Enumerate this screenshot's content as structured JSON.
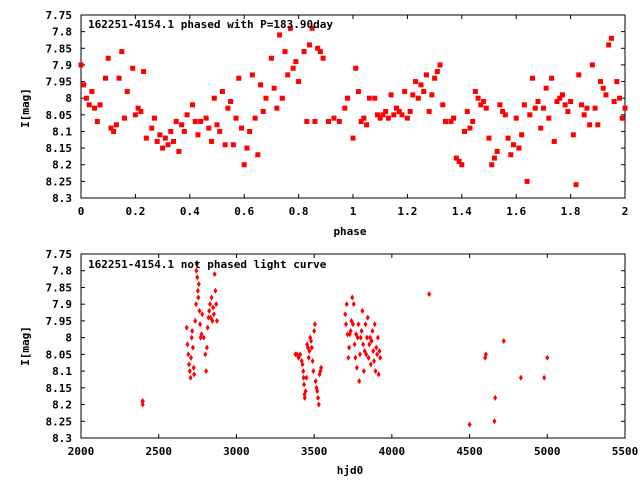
{
  "chart_data": [
    {
      "type": "scatter",
      "title": "162251-4154.1 phased with P=183.90day",
      "xlabel": "phase",
      "ylabel": "I[mag]",
      "xlim": [
        0,
        2
      ],
      "ylim": [
        8.3,
        7.75
      ],
      "y_inverted": true,
      "x_ticks": [
        "0",
        "0.2",
        "0.4",
        "0.6",
        "0.8",
        "1",
        "1.2",
        "1.4",
        "1.6",
        "1.8",
        "2"
      ],
      "y_ticks": [
        "7.75",
        "7.8",
        "7.85",
        "7.9",
        "7.95",
        "8",
        "8.05",
        "8.1",
        "8.15",
        "8.2",
        "8.25",
        "8.3"
      ],
      "marker_color": "#ff0000",
      "marker": "square",
      "points": [
        [
          0.0,
          7.9
        ],
        [
          0.01,
          7.96
        ],
        [
          0.02,
          8.0
        ],
        [
          0.03,
          8.02
        ],
        [
          0.04,
          7.98
        ],
        [
          0.05,
          8.03
        ],
        [
          0.06,
          8.07
        ],
        [
          0.07,
          8.02
        ],
        [
          0.09,
          7.94
        ],
        [
          0.1,
          7.88
        ],
        [
          0.11,
          8.09
        ],
        [
          0.12,
          8.1
        ],
        [
          0.13,
          8.08
        ],
        [
          0.14,
          7.94
        ],
        [
          0.15,
          7.86
        ],
        [
          0.16,
          8.06
        ],
        [
          0.17,
          7.98
        ],
        [
          0.19,
          7.91
        ],
        [
          0.2,
          8.05
        ],
        [
          0.21,
          8.03
        ],
        [
          0.22,
          8.04
        ],
        [
          0.23,
          7.92
        ],
        [
          0.24,
          8.12
        ],
        [
          0.26,
          8.09
        ],
        [
          0.27,
          8.06
        ],
        [
          0.28,
          8.13
        ],
        [
          0.29,
          8.11
        ],
        [
          0.3,
          8.15
        ],
        [
          0.31,
          8.12
        ],
        [
          0.32,
          8.14
        ],
        [
          0.33,
          8.1
        ],
        [
          0.34,
          8.13
        ],
        [
          0.35,
          8.07
        ],
        [
          0.36,
          8.16
        ],
        [
          0.37,
          8.08
        ],
        [
          0.38,
          8.1
        ],
        [
          0.39,
          8.05
        ],
        [
          0.41,
          8.02
        ],
        [
          0.42,
          8.07
        ],
        [
          0.43,
          8.11
        ],
        [
          0.44,
          8.07
        ],
        [
          0.46,
          8.06
        ],
        [
          0.47,
          8.09
        ],
        [
          0.48,
          8.13
        ],
        [
          0.49,
          8.0
        ],
        [
          0.5,
          8.08
        ],
        [
          0.51,
          8.1
        ],
        [
          0.52,
          7.98
        ],
        [
          0.53,
          8.14
        ],
        [
          0.54,
          8.03
        ],
        [
          0.55,
          8.01
        ],
        [
          0.56,
          8.14
        ],
        [
          0.57,
          8.06
        ],
        [
          0.58,
          7.94
        ],
        [
          0.59,
          8.09
        ],
        [
          0.6,
          8.2
        ],
        [
          0.61,
          8.15
        ],
        [
          0.62,
          8.1
        ],
        [
          0.63,
          7.93
        ],
        [
          0.64,
          8.06
        ],
        [
          0.65,
          8.17
        ],
        [
          0.66,
          7.96
        ],
        [
          0.67,
          8.04
        ],
        [
          0.68,
          8.0
        ],
        [
          0.7,
          7.88
        ],
        [
          0.71,
          7.97
        ],
        [
          0.72,
          8.03
        ],
        [
          0.73,
          7.81
        ],
        [
          0.74,
          8.0
        ],
        [
          0.75,
          7.86
        ],
        [
          0.76,
          7.93
        ],
        [
          0.77,
          7.79
        ],
        [
          0.78,
          7.91
        ],
        [
          0.79,
          7.89
        ],
        [
          0.8,
          7.95
        ],
        [
          0.82,
          7.86
        ],
        [
          0.83,
          8.07
        ],
        [
          0.84,
          7.84
        ],
        [
          0.85,
          7.79
        ],
        [
          0.86,
          8.07
        ],
        [
          0.87,
          7.85
        ],
        [
          0.88,
          7.86
        ],
        [
          0.89,
          7.88
        ],
        [
          0.91,
          8.07
        ],
        [
          0.93,
          8.06
        ],
        [
          0.95,
          8.07
        ],
        [
          0.97,
          8.03
        ],
        [
          0.98,
          8.0
        ],
        [
          1.0,
          8.12
        ],
        [
          1.01,
          7.91
        ],
        [
          1.02,
          7.98
        ],
        [
          1.03,
          8.07
        ],
        [
          1.04,
          8.06
        ],
        [
          1.05,
          8.08
        ],
        [
          1.06,
          8.0
        ],
        [
          1.08,
          8.0
        ],
        [
          1.09,
          8.05
        ],
        [
          1.1,
          8.06
        ],
        [
          1.11,
          8.05
        ],
        [
          1.12,
          8.04
        ],
        [
          1.13,
          8.06
        ],
        [
          1.14,
          7.99
        ],
        [
          1.15,
          8.05
        ],
        [
          1.16,
          8.03
        ],
        [
          1.17,
          8.04
        ],
        [
          1.18,
          8.05
        ],
        [
          1.19,
          7.98
        ],
        [
          1.2,
          8.06
        ],
        [
          1.21,
          8.04
        ],
        [
          1.22,
          7.99
        ],
        [
          1.23,
          7.95
        ],
        [
          1.24,
          8.0
        ],
        [
          1.25,
          7.96
        ],
        [
          1.26,
          7.98
        ],
        [
          1.27,
          7.93
        ],
        [
          1.28,
          8.04
        ],
        [
          1.29,
          7.99
        ],
        [
          1.3,
          7.94
        ],
        [
          1.31,
          7.92
        ],
        [
          1.32,
          7.9
        ],
        [
          1.33,
          8.02
        ],
        [
          1.34,
          8.07
        ],
        [
          1.36,
          8.07
        ],
        [
          1.37,
          8.06
        ],
        [
          1.38,
          8.18
        ],
        [
          1.39,
          8.19
        ],
        [
          1.4,
          8.2
        ],
        [
          1.41,
          8.1
        ],
        [
          1.42,
          8.04
        ],
        [
          1.43,
          8.09
        ],
        [
          1.44,
          8.07
        ],
        [
          1.45,
          7.98
        ],
        [
          1.46,
          8.0
        ],
        [
          1.47,
          8.02
        ],
        [
          1.48,
          8.01
        ],
        [
          1.49,
          8.03
        ],
        [
          1.5,
          8.12
        ],
        [
          1.51,
          8.2
        ],
        [
          1.52,
          8.18
        ],
        [
          1.53,
          8.16
        ],
        [
          1.54,
          8.02
        ],
        [
          1.55,
          8.04
        ],
        [
          1.56,
          8.05
        ],
        [
          1.57,
          8.12
        ],
        [
          1.58,
          8.17
        ],
        [
          1.59,
          8.14
        ],
        [
          1.6,
          8.06
        ],
        [
          1.61,
          8.15
        ],
        [
          1.62,
          8.11
        ],
        [
          1.63,
          8.02
        ],
        [
          1.64,
          8.25
        ],
        [
          1.65,
          8.05
        ],
        [
          1.66,
          7.94
        ],
        [
          1.67,
          8.03
        ],
        [
          1.68,
          8.01
        ],
        [
          1.69,
          8.09
        ],
        [
          1.7,
          8.03
        ],
        [
          1.71,
          7.97
        ],
        [
          1.72,
          8.06
        ],
        [
          1.73,
          7.94
        ],
        [
          1.74,
          8.13
        ],
        [
          1.75,
          8.01
        ],
        [
          1.76,
          8.0
        ],
        [
          1.77,
          7.99
        ],
        [
          1.78,
          8.02
        ],
        [
          1.79,
          8.04
        ],
        [
          1.8,
          8.01
        ],
        [
          1.81,
          8.11
        ],
        [
          1.82,
          8.26
        ],
        [
          1.83,
          7.93
        ],
        [
          1.84,
          8.02
        ],
        [
          1.85,
          8.05
        ],
        [
          1.86,
          8.03
        ],
        [
          1.87,
          8.08
        ],
        [
          1.88,
          7.9
        ],
        [
          1.89,
          8.03
        ],
        [
          1.9,
          8.08
        ],
        [
          1.91,
          7.95
        ],
        [
          1.92,
          7.97
        ],
        [
          1.93,
          7.99
        ],
        [
          1.94,
          7.84
        ],
        [
          1.95,
          7.82
        ],
        [
          1.96,
          8.01
        ],
        [
          1.97,
          7.95
        ],
        [
          1.98,
          8.0
        ],
        [
          1.99,
          8.06
        ],
        [
          2.0,
          8.03
        ]
      ]
    },
    {
      "type": "scatter",
      "title": "162251-4154.1 not phased light curve",
      "xlabel": "hjd0",
      "ylabel": "I[mag]",
      "xlim": [
        2000,
        5500
      ],
      "ylim": [
        8.3,
        7.75
      ],
      "y_inverted": true,
      "x_ticks": [
        "2000",
        "2500",
        "3000",
        "3500",
        "4000",
        "4500",
        "5000",
        "5500"
      ],
      "y_ticks": [
        "7.75",
        "7.8",
        "7.85",
        "7.9",
        "7.95",
        "8",
        "8.05",
        "8.1",
        "8.15",
        "8.2",
        "8.25",
        "8.3"
      ],
      "marker_color": "#ff0000",
      "marker": "diamond",
      "points": [
        [
          2395,
          8.19
        ],
        [
          2397,
          8.2
        ],
        [
          2398,
          8.19
        ],
        [
          2680,
          7.97
        ],
        [
          2685,
          8.02
        ],
        [
          2690,
          8.05
        ],
        [
          2695,
          8.08
        ],
        [
          2700,
          8.1
        ],
        [
          2705,
          8.12
        ],
        [
          2708,
          8.06
        ],
        [
          2712,
          8.0
        ],
        [
          2715,
          7.98
        ],
        [
          2720,
          8.03
        ],
        [
          2725,
          8.09
        ],
        [
          2728,
          8.11
        ],
        [
          2735,
          7.95
        ],
        [
          2740,
          7.9
        ],
        [
          2742,
          7.8
        ],
        [
          2745,
          7.78
        ],
        [
          2748,
          7.82
        ],
        [
          2752,
          7.86
        ],
        [
          2755,
          7.88
        ],
        [
          2758,
          7.84
        ],
        [
          2762,
          7.92
        ],
        [
          2766,
          7.96
        ],
        [
          2770,
          8.0
        ],
        [
          2775,
          7.99
        ],
        [
          2780,
          7.93
        ],
        [
          2790,
          8.0
        ],
        [
          2800,
          8.05
        ],
        [
          2805,
          8.1
        ],
        [
          2810,
          8.03
        ],
        [
          2815,
          7.97
        ],
        [
          2820,
          7.94
        ],
        [
          2825,
          7.92
        ],
        [
          2830,
          7.9
        ],
        [
          2835,
          7.94
        ],
        [
          2840,
          7.88
        ],
        [
          2845,
          7.95
        ],
        [
          2850,
          7.91
        ],
        [
          2855,
          7.93
        ],
        [
          2860,
          7.81
        ],
        [
          2865,
          7.86
        ],
        [
          2870,
          7.9
        ],
        [
          2875,
          7.95
        ],
        [
          3380,
          8.05
        ],
        [
          3390,
          8.05
        ],
        [
          3400,
          8.06
        ],
        [
          3410,
          8.05
        ],
        [
          3420,
          8.07
        ],
        [
          3425,
          8.08
        ],
        [
          3430,
          8.1
        ],
        [
          3432,
          8.12
        ],
        [
          3435,
          8.14
        ],
        [
          3438,
          8.17
        ],
        [
          3440,
          8.18
        ],
        [
          3445,
          8.16
        ],
        [
          3450,
          8.12
        ],
        [
          3455,
          8.02
        ],
        [
          3460,
          8.03
        ],
        [
          3465,
          8.06
        ],
        [
          3470,
          8.04
        ],
        [
          3475,
          8.0
        ],
        [
          3480,
          8.01
        ],
        [
          3485,
          8.03
        ],
        [
          3490,
          8.07
        ],
        [
          3495,
          8.1
        ],
        [
          3500,
          7.98
        ],
        [
          3505,
          7.96
        ],
        [
          3510,
          8.13
        ],
        [
          3515,
          8.15
        ],
        [
          3520,
          8.16
        ],
        [
          3525,
          8.18
        ],
        [
          3530,
          8.2
        ],
        [
          3535,
          8.11
        ],
        [
          3540,
          8.1
        ],
        [
          3545,
          8.09
        ],
        [
          3700,
          7.93
        ],
        [
          3705,
          7.96
        ],
        [
          3710,
          7.9
        ],
        [
          3715,
          7.99
        ],
        [
          3720,
          8.06
        ],
        [
          3725,
          8.03
        ],
        [
          3730,
          7.99
        ],
        [
          3735,
          7.98
        ],
        [
          3740,
          7.95
        ],
        [
          3745,
          7.88
        ],
        [
          3750,
          7.96
        ],
        [
          3755,
          7.9
        ],
        [
          3760,
          8.02
        ],
        [
          3765,
          8.06
        ],
        [
          3770,
          7.99
        ],
        [
          3775,
          8.09
        ],
        [
          3780,
          8.0
        ],
        [
          3785,
          7.96
        ],
        [
          3790,
          8.13
        ],
        [
          3795,
          8.05
        ],
        [
          3800,
          8.0
        ],
        [
          3805,
          7.98
        ],
        [
          3810,
          7.92
        ],
        [
          3815,
          8.02
        ],
        [
          3820,
          8.1
        ],
        [
          3825,
          8.04
        ],
        [
          3830,
          7.96
        ],
        [
          3835,
          8.05
        ],
        [
          3840,
          8.0
        ],
        [
          3845,
          7.94
        ],
        [
          3850,
          8.06
        ],
        [
          3855,
          8.02
        ],
        [
          3860,
          8.0
        ],
        [
          3865,
          8.08
        ],
        [
          3870,
          8.01
        ],
        [
          3875,
          7.98
        ],
        [
          3880,
          8.04
        ],
        [
          3885,
          8.07
        ],
        [
          3890,
          7.96
        ],
        [
          3895,
          8.1
        ],
        [
          3900,
          8.03
        ],
        [
          3905,
          8.05
        ],
        [
          3910,
          8.0
        ],
        [
          3915,
          8.11
        ],
        [
          3920,
          8.04
        ],
        [
          3925,
          8.06
        ],
        [
          4240,
          7.87
        ],
        [
          4500,
          8.26
        ],
        [
          4600,
          8.06
        ],
        [
          4605,
          8.05
        ],
        [
          4660,
          8.25
        ],
        [
          4665,
          8.18
        ],
        [
          4720,
          8.01
        ],
        [
          4830,
          8.12
        ],
        [
          4980,
          8.12
        ],
        [
          5000,
          8.06
        ]
      ]
    }
  ]
}
